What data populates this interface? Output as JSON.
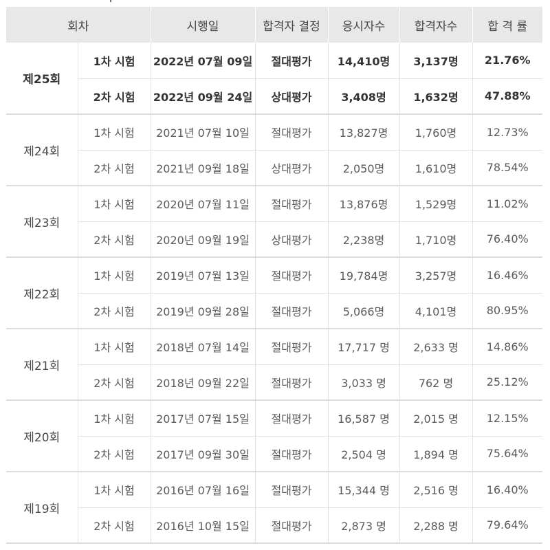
{
  "table": {
    "headers": [
      "회차",
      "시행일",
      "합격자 결정",
      "응시자수",
      "합격자수",
      "합 격 률"
    ],
    "rounds": [
      {
        "round": "제25회",
        "bold": true,
        "sessions": [
          {
            "exam": "1차 시험",
            "date": "2022년 07월 09일",
            "decision": "절대평가",
            "applicants": "14,410명",
            "passers": "3,137명",
            "pass_rate": "21.76%"
          },
          {
            "exam": "2차 시험",
            "date": "2022년 09월 24일",
            "decision": "상대평가",
            "applicants": "3,408명",
            "passers": "1,632명",
            "pass_rate": "47.88%"
          }
        ]
      },
      {
        "round": "제24회",
        "bold": false,
        "sessions": [
          {
            "exam": "1차 시험",
            "date": "2021년 07월 10일",
            "decision": "절대평가",
            "applicants": "13,827명",
            "passers": "1,760명",
            "pass_rate": "12.73%"
          },
          {
            "exam": "2차 시험",
            "date": "2021년 09월 18일",
            "decision": "상대평가",
            "applicants": "2,050명",
            "passers": "1,610명",
            "pass_rate": "78.54%"
          }
        ]
      },
      {
        "round": "제23회",
        "bold": false,
        "sessions": [
          {
            "exam": "1차 시험",
            "date": "2020년 07월 11일",
            "decision": "절대평가",
            "applicants": "13,876명",
            "passers": "1,529명",
            "pass_rate": "11.02%"
          },
          {
            "exam": "2차 시험",
            "date": "2020년 09월 19일",
            "decision": "상대평가",
            "applicants": "2,238명",
            "passers": "1,710명",
            "pass_rate": "76.40%"
          }
        ]
      },
      {
        "round": "제22회",
        "bold": false,
        "sessions": [
          {
            "exam": "1차 시험",
            "date": "2019년 07월 13일",
            "decision": "절대평가",
            "applicants": "19,784명",
            "passers": "3,257명",
            "pass_rate": "16.46%"
          },
          {
            "exam": "2차 시험",
            "date": "2019년 09월 28일",
            "decision": "절대평가",
            "applicants": "5,066명",
            "passers": "4,101명",
            "pass_rate": "80.95%"
          }
        ]
      },
      {
        "round": "제21회",
        "bold": false,
        "sessions": [
          {
            "exam": "1차 시험",
            "date": "2018년 07월 14일",
            "decision": "절대평가",
            "applicants": "17,717 명",
            "passers": "2,633 명",
            "pass_rate": "14.86%"
          },
          {
            "exam": "2차 시험",
            "date": "2018년 09월 22일",
            "decision": "절대평가",
            "applicants": "3,033 명",
            "passers": "762 명",
            "pass_rate": "25.12%"
          }
        ]
      },
      {
        "round": "제20회",
        "bold": false,
        "sessions": [
          {
            "exam": "1차 시험",
            "date": "2017년 07월 15일",
            "decision": "절대평가",
            "applicants": "16,587 명",
            "passers": "2,015 명",
            "pass_rate": "12.15%"
          },
          {
            "exam": "2차 시험",
            "date": "2017년 09월 30일",
            "decision": "절대평가",
            "applicants": "2,504 명",
            "passers": "1,894 명",
            "pass_rate": "75.64%"
          }
        ]
      },
      {
        "round": "제19회",
        "bold": false,
        "sessions": [
          {
            "exam": "1차 시험",
            "date": "2016년 07월 16일",
            "decision": "절대평가",
            "applicants": "15,344 명",
            "passers": "2,516 명",
            "pass_rate": "16.40%"
          },
          {
            "exam": "2차 시험",
            "date": "2016년 10월 15일",
            "decision": "절대평가",
            "applicants": "2,873 명",
            "passers": "2,288 명",
            "pass_rate": "79.64%"
          }
        ]
      }
    ]
  }
}
